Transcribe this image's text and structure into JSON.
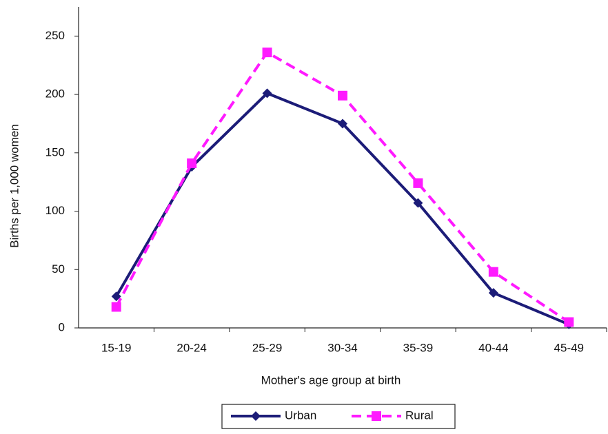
{
  "chart_data": {
    "type": "line",
    "categories": [
      "15-19",
      "20-24",
      "25-29",
      "30-34",
      "35-39",
      "40-44",
      "45-49"
    ],
    "series": [
      {
        "name": "Urban",
        "color": "#1c1c78",
        "values": [
          27,
          138,
          201,
          175,
          107,
          30,
          3
        ]
      },
      {
        "name": "Rural",
        "color": "#ff1aff",
        "values": [
          18,
          141,
          236,
          199,
          124,
          48,
          5
        ]
      }
    ],
    "x_label": "Mother's age group at birth",
    "y_label": "Births per 1,000 women",
    "ylim": [
      0,
      275
    ],
    "yticks": [
      0,
      50,
      100,
      150,
      200,
      250
    ],
    "grid": false,
    "legend": "bottom"
  }
}
